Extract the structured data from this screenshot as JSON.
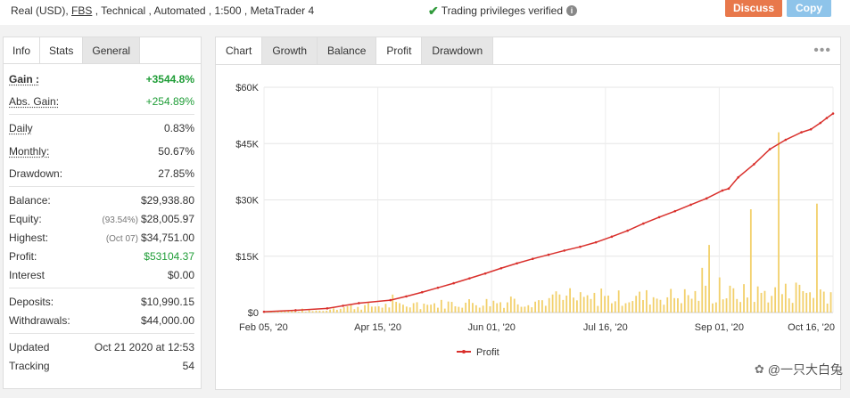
{
  "header": {
    "account_prefix": "Real (USD), ",
    "broker": "FBS",
    "account_suffix": " , Technical , Automated , 1:500 , MetaTrader 4",
    "verified_text": "Trading privileges verified",
    "discuss_label": "Discuss",
    "copy_label": "Copy"
  },
  "left_tabs": [
    "Info",
    "Stats",
    "General"
  ],
  "stats": {
    "gain_label": "Gain :",
    "gain_value": "+3544.8%",
    "abs_gain_label": "Abs. Gain:",
    "abs_gain_value": "+254.89%",
    "daily_label": "Daily",
    "daily_value": "0.83%",
    "monthly_label": "Monthly:",
    "monthly_value": "50.67%",
    "drawdown_label": "Drawdown:",
    "drawdown_value": "27.85%",
    "balance_label": "Balance:",
    "balance_value": "$29,938.80",
    "equity_label": "Equity:",
    "equity_note": "(93.54%)",
    "equity_value": "$28,005.97",
    "highest_label": "Highest:",
    "highest_note": "(Oct 07)",
    "highest_value": "$34,751.00",
    "profit_label": "Profit:",
    "profit_value": "$53104.37",
    "interest_label": "Interest",
    "interest_value": "$0.00",
    "deposits_label": "Deposits:",
    "deposits_value": "$10,990.15",
    "withdrawals_label": "Withdrawals:",
    "withdrawals_value": "$44,000.00",
    "updated_label": "Updated",
    "updated_value": "Oct 21 2020 at 12:53",
    "tracking_label": "Tracking",
    "tracking_value": "54"
  },
  "chart_tabs": [
    "Chart",
    "Growth",
    "Balance",
    "Profit",
    "Drawdown"
  ],
  "watermark": "@一只大白兔",
  "colors": {
    "line": "#d9302c",
    "bars": "#f2d06b",
    "green": "#1f9d37",
    "discuss": "#e8784b",
    "copy": "#8ec4ea"
  },
  "chart_data": {
    "type": "line",
    "series": [
      {
        "name": "Profit"
      }
    ],
    "y_ticks": [
      "$0",
      "$15K",
      "$30K",
      "$45K",
      "$60K"
    ],
    "x_ticks": [
      "Feb 05, '20",
      "Apr 15, '20",
      "Jun 01, '20",
      "Jul 16, '20",
      "Sep 01, '20",
      "Oct 16, '20"
    ],
    "ylim": [
      0,
      60000
    ],
    "line_points": [
      [
        0,
        200
      ],
      [
        10,
        600
      ],
      [
        20,
        1100
      ],
      [
        25,
        1800
      ],
      [
        30,
        2500
      ],
      [
        40,
        3300
      ],
      [
        45,
        4300
      ],
      [
        50,
        5400
      ],
      [
        55,
        6600
      ],
      [
        60,
        7800
      ],
      [
        65,
        9100
      ],
      [
        70,
        10400
      ],
      [
        75,
        11800
      ],
      [
        80,
        13100
      ],
      [
        85,
        14300
      ],
      [
        90,
        15400
      ],
      [
        95,
        16500
      ],
      [
        100,
        17500
      ],
      [
        105,
        18700
      ],
      [
        110,
        20200
      ],
      [
        115,
        21800
      ],
      [
        120,
        23700
      ],
      [
        125,
        25400
      ],
      [
        130,
        27000
      ],
      [
        135,
        28700
      ],
      [
        140,
        30400
      ],
      [
        145,
        32500
      ],
      [
        147,
        33000
      ],
      [
        150,
        36000
      ],
      [
        155,
        39500
      ],
      [
        160,
        43500
      ],
      [
        165,
        46000
      ],
      [
        170,
        48000
      ],
      [
        173,
        48800
      ],
      [
        176,
        50500
      ],
      [
        178,
        51800
      ],
      [
        180,
        53000
      ]
    ],
    "bars_description_level": "daily profit volume bars (light yellow) rising over time, mostly $2K-$9K, spikes near $18K, $29K, $48K"
  }
}
